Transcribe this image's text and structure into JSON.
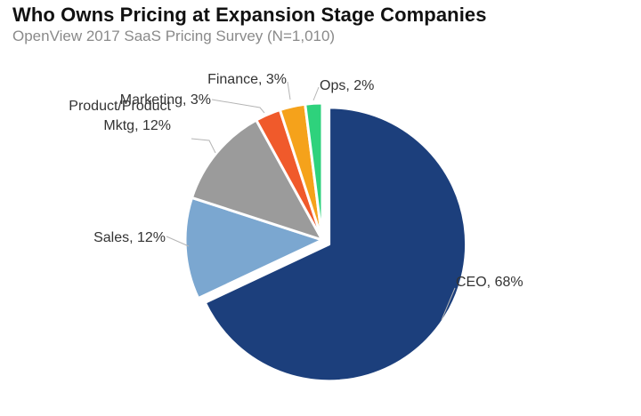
{
  "title": "Who Owns Pricing at Expansion Stage Companies",
  "subtitle": "OpenView 2017 SaaS Pricing Survey (N=1,010)",
  "chart_data": {
    "type": "pie",
    "title": "Who Owns Pricing at Expansion Stage Companies",
    "subtitle": "OpenView 2017 SaaS Pricing Survey (N=1,010)",
    "slices": [
      {
        "label": "CEO",
        "value": 68,
        "color": "#1c3f7c",
        "exploded": true
      },
      {
        "label": "Sales",
        "value": 12,
        "color": "#7ba7d0"
      },
      {
        "label": "Product/Product Mktg",
        "value": 12,
        "color": "#9b9b9b"
      },
      {
        "label": "Marketing",
        "value": 3,
        "color": "#f05a2b"
      },
      {
        "label": "Finance",
        "value": 3,
        "color": "#f5a21b"
      },
      {
        "label": "Ops",
        "value": 2,
        "color": "#2ed27c"
      }
    ],
    "data_labels": [
      {
        "lines": [
          "CEO, 68%"
        ]
      },
      {
        "lines": [
          "Sales, 12%"
        ]
      },
      {
        "lines": [
          "Product/Product",
          "Mktg, 12%"
        ]
      },
      {
        "lines": [
          "Marketing, 3%"
        ]
      },
      {
        "lines": [
          "Finance, 3%"
        ]
      },
      {
        "lines": [
          "Ops, 2%"
        ]
      }
    ],
    "legend": "none"
  }
}
